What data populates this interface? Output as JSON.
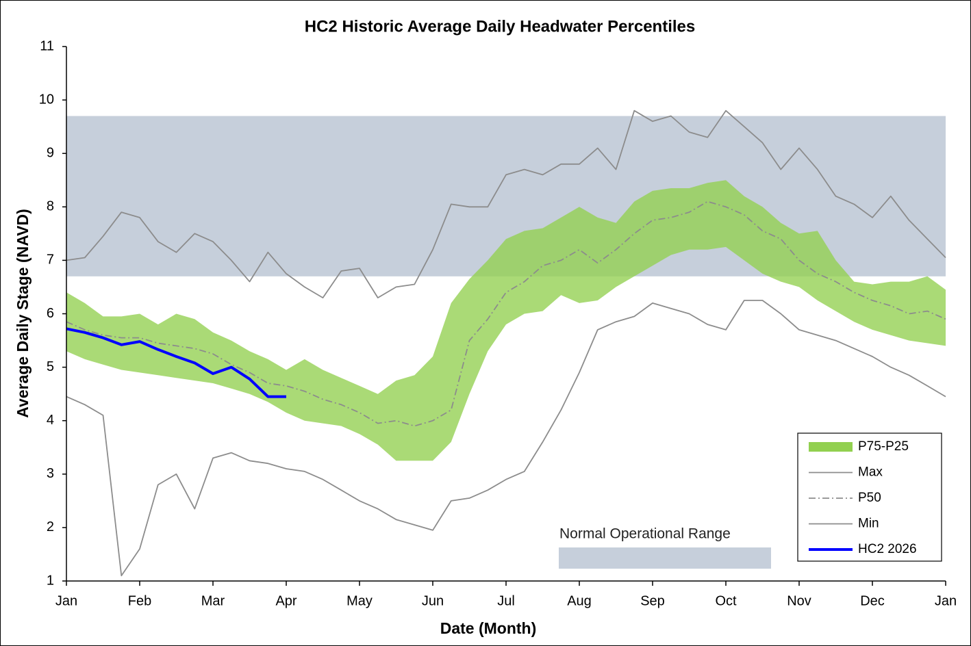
{
  "chart_data": {
    "type": "line",
    "title": "HC2 Historic Average Daily Headwater Percentiles",
    "x_label": "Date (Month)",
    "y_label": "Average Daily Stage (NAVD)",
    "categories": [
      "Jan",
      null,
      null,
      null,
      "Feb",
      null,
      null,
      null,
      "Mar",
      null,
      null,
      null,
      "Apr",
      null,
      null,
      null,
      "May",
      null,
      null,
      null,
      "Jun",
      null,
      null,
      null,
      "Jul",
      null,
      null,
      null,
      "Aug",
      null,
      null,
      null,
      "Sep",
      null,
      null,
      null,
      "Oct",
      null,
      null,
      null,
      "Nov",
      null,
      null,
      null,
      "Dec",
      null,
      null,
      null,
      "Jan"
    ],
    "ylim": [
      1,
      11
    ],
    "yticks": [
      1,
      2,
      3,
      4,
      5,
      6,
      7,
      8,
      9,
      10,
      11
    ],
    "range": {
      "label": "Normal Operational Range",
      "low": 6.7,
      "high": 9.7,
      "color": "#c6cfdb"
    },
    "legend": "lower right",
    "series": [
      {
        "name": "P75-P25",
        "style": "band",
        "color": "#92d050",
        "upper": [
          6.4,
          6.2,
          5.95,
          5.95,
          6.0,
          5.8,
          6.0,
          5.9,
          5.65,
          5.5,
          5.3,
          5.15,
          4.95,
          5.15,
          4.95,
          4.8,
          4.65,
          4.5,
          4.75,
          4.85,
          5.2,
          6.2,
          6.65,
          7.0,
          7.4,
          7.55,
          7.6,
          7.8,
          8.0,
          7.8,
          7.7,
          8.1,
          8.3,
          8.35,
          8.35,
          8.45,
          8.5,
          8.2,
          8.0,
          7.7,
          7.5,
          7.55,
          7.0,
          6.6,
          6.55,
          6.6,
          6.6,
          6.7,
          6.45
        ],
        "lower": [
          5.3,
          5.15,
          5.05,
          4.95,
          4.9,
          4.85,
          4.8,
          4.75,
          4.7,
          4.6,
          4.5,
          4.35,
          4.15,
          4.0,
          3.95,
          3.9,
          3.75,
          3.55,
          3.25,
          3.25,
          3.25,
          3.6,
          4.5,
          5.3,
          5.8,
          6.0,
          6.05,
          6.35,
          6.2,
          6.25,
          6.5,
          6.7,
          6.9,
          7.1,
          7.2,
          7.2,
          7.25,
          7.0,
          6.75,
          6.6,
          6.5,
          6.25,
          6.05,
          5.85,
          5.7,
          5.6,
          5.5,
          5.45,
          5.4
        ]
      },
      {
        "name": "Max",
        "style": "solid",
        "color": "#8c8c8c",
        "values": [
          7.0,
          7.05,
          7.45,
          7.9,
          7.8,
          7.35,
          7.15,
          7.5,
          7.35,
          7.0,
          6.6,
          7.15,
          6.75,
          6.5,
          6.3,
          6.8,
          6.85,
          6.3,
          6.5,
          6.55,
          7.2,
          8.05,
          8.0,
          8.0,
          8.6,
          8.7,
          8.6,
          8.8,
          8.8,
          9.1,
          8.7,
          9.8,
          9.6,
          9.7,
          9.4,
          9.3,
          9.8,
          9.5,
          9.2,
          8.7,
          9.1,
          8.7,
          8.2,
          8.05,
          7.8,
          8.2,
          7.75,
          7.4,
          7.05
        ]
      },
      {
        "name": "P50",
        "style": "dashdot",
        "color": "#8c8c8c",
        "values": [
          5.85,
          5.7,
          5.6,
          5.55,
          5.55,
          5.45,
          5.4,
          5.35,
          5.25,
          5.05,
          4.9,
          4.7,
          4.65,
          4.55,
          4.4,
          4.3,
          4.15,
          3.95,
          4.0,
          3.9,
          4.0,
          4.2,
          5.5,
          5.9,
          6.4,
          6.6,
          6.9,
          7.0,
          7.2,
          6.95,
          7.2,
          7.5,
          7.75,
          7.8,
          7.9,
          8.1,
          8.0,
          7.85,
          7.55,
          7.4,
          7.0,
          6.75,
          6.6,
          6.4,
          6.25,
          6.15,
          6.0,
          6.05,
          5.9
        ]
      },
      {
        "name": "Min",
        "style": "solid",
        "color": "#8c8c8c",
        "values": [
          4.45,
          4.3,
          4.1,
          1.1,
          1.6,
          2.8,
          3.0,
          2.35,
          3.3,
          3.4,
          3.25,
          3.2,
          3.1,
          3.05,
          2.9,
          2.7,
          2.5,
          2.35,
          2.15,
          2.05,
          1.95,
          2.5,
          2.55,
          2.7,
          2.9,
          3.05,
          3.6,
          4.2,
          4.9,
          5.7,
          5.85,
          5.95,
          6.2,
          6.1,
          6.0,
          5.8,
          5.7,
          6.25,
          6.25,
          6.0,
          5.7,
          5.6,
          5.5,
          5.35,
          5.2,
          5.0,
          4.85,
          4.65,
          4.45
        ]
      },
      {
        "name": "HC2 2026",
        "style": "thick",
        "color": "#0000ff",
        "values": [
          5.72,
          5.65,
          5.55,
          5.42,
          5.48,
          5.33,
          5.2,
          5.08,
          4.88,
          5.0,
          4.78,
          4.45,
          4.45,
          null,
          null,
          null,
          null,
          null,
          null,
          null,
          null,
          null,
          null,
          null,
          null,
          null,
          null,
          null,
          null,
          null,
          null,
          null,
          null,
          null,
          null,
          null,
          null,
          null,
          null,
          null,
          null,
          null,
          null,
          null,
          null,
          null,
          null,
          null,
          null
        ]
      }
    ]
  }
}
